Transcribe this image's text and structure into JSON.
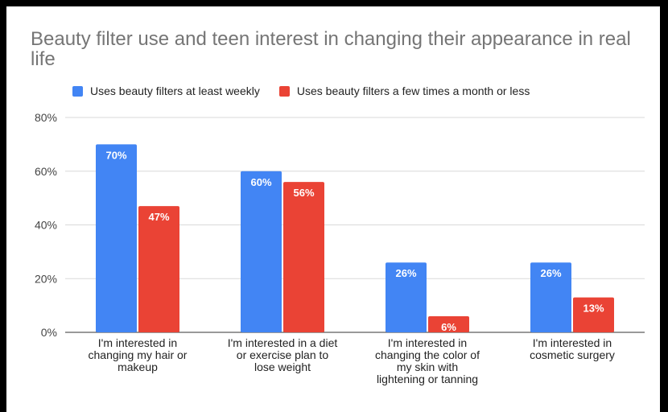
{
  "chart_data": {
    "type": "bar",
    "title": "Beauty filter use and teen interest in changing their appearance in real life",
    "categories": [
      [
        "I'm interested in",
        "changing my hair or",
        "makeup"
      ],
      [
        "I'm interested in a diet",
        "or exercise plan to",
        "lose weight"
      ],
      [
        "I'm interested in",
        "changing the color of",
        "my skin with",
        "lightening or tanning"
      ],
      [
        "I'm interested in",
        "cosmetic surgery"
      ]
    ],
    "series": [
      {
        "name": "Uses beauty filters at least weekly",
        "color": "#4285f4",
        "values": [
          70,
          60,
          26,
          26
        ],
        "labels": [
          "70%",
          "60%",
          "26%",
          "26%"
        ]
      },
      {
        "name": "Uses beauty filters a few times a month or less",
        "color": "#ea4335",
        "values": [
          47,
          56,
          6,
          13
        ],
        "labels": [
          "47%",
          "56%",
          "6%",
          "13%"
        ]
      }
    ],
    "ylim": [
      0,
      80
    ],
    "yticks": [
      0,
      20,
      40,
      60,
      80
    ],
    "ytick_labels": [
      "0%",
      "20%",
      "40%",
      "60%",
      "80%"
    ],
    "grid": true,
    "legend_position": "top"
  }
}
